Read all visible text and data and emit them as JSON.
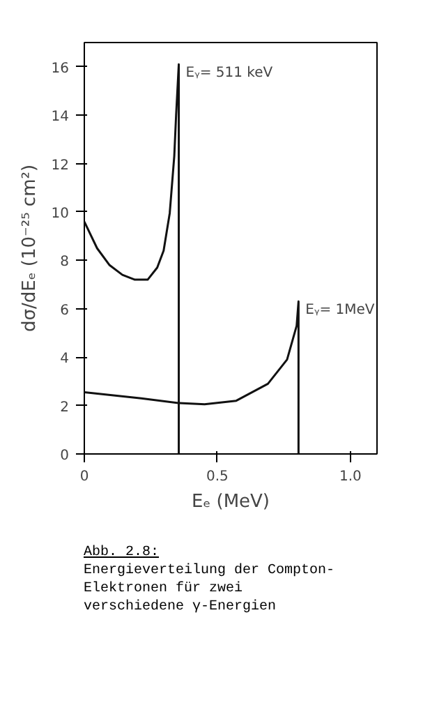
{
  "chart_data": {
    "type": "line",
    "xlabel": "Eₑ (MeV)",
    "ylabel": "dσ/dEₑ (10⁻²⁵ cm²)",
    "xlim": [
      0,
      1.1
    ],
    "ylim": [
      0,
      17
    ],
    "xticks": [
      0,
      0.5,
      {
        "value": 1.0,
        "label": "1.0"
      }
    ],
    "yticks": [
      0,
      2,
      4,
      6,
      8,
      10,
      12,
      14,
      16
    ],
    "grid": false,
    "marker": "none",
    "line_style": "solid",
    "series": [
      {
        "color": "#111111",
        "x": [
          0,
          0.048,
          0.095,
          0.143,
          0.19,
          0.238,
          0.274,
          0.298,
          0.321,
          0.338,
          0.345,
          0.355,
          0.355
        ],
        "values": [
          9.6,
          8.5,
          7.8,
          7.4,
          7.2,
          7.2,
          7.7,
          8.4,
          9.95,
          12.3,
          14.0,
          16.1,
          0
        ]
      },
      {
        "color": "#111111",
        "x": [
          0,
          0.214,
          0.357,
          0.452,
          0.571,
          0.69,
          0.762,
          0.798,
          0.805,
          0.805
        ],
        "values": [
          2.55,
          2.3,
          2.1,
          2.05,
          2.2,
          2.9,
          3.9,
          5.3,
          6.3,
          0
        ]
      }
    ],
    "annotations": [
      {
        "text": "Eᵧ= 511 keV",
        "x": 0.355,
        "y": 16.1
      },
      {
        "text": "Eᵧ= 1MeV",
        "x": 0.805,
        "y": 6.3
      },
      "Abb. 2.8:",
      "Energieverteilung der Compton-Elektronen für zwei verschiedene γ-Energien"
    ]
  }
}
